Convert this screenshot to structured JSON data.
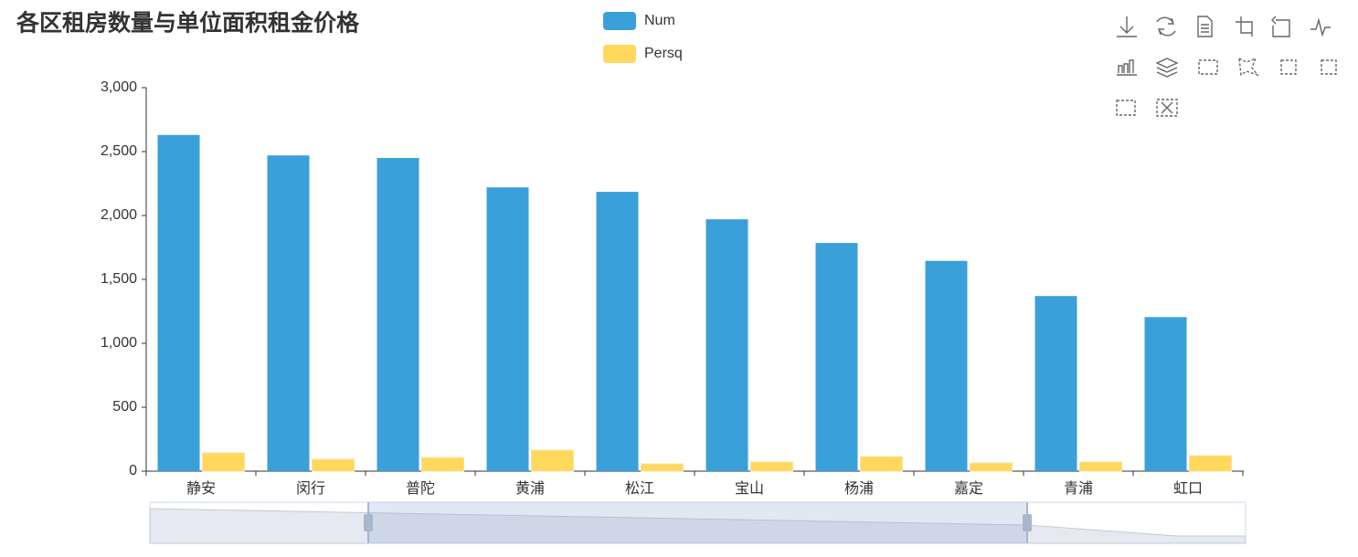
{
  "chart_data": {
    "type": "bar",
    "title": "各区租房数量与单位面积租金价格",
    "categories": [
      "静安",
      "闵行",
      "普陀",
      "黄浦",
      "松江",
      "宝山",
      "杨浦",
      "嘉定",
      "青浦",
      "虹口"
    ],
    "series": [
      {
        "name": "Num",
        "color": "#3aa0da",
        "values": [
          2630,
          2470,
          2450,
          2220,
          2185,
          1970,
          1785,
          1645,
          1370,
          1205
        ]
      },
      {
        "name": "Persq",
        "color": "#ffd85c",
        "values": [
          143,
          93,
          107,
          164,
          57,
          71,
          114,
          64,
          71,
          121
        ]
      }
    ],
    "ylim": [
      0,
      3000
    ],
    "yticks": [
      0,
      500,
      {
        "value": 1000,
        "label": "1,000"
      },
      {
        "value": 1500,
        "label": "1,500"
      },
      {
        "value": 2000,
        "label": "2,000"
      },
      {
        "value": 2500,
        "label": "2,500"
      },
      {
        "value": 3000,
        "label": "3,000"
      }
    ],
    "grid": false
  }
}
